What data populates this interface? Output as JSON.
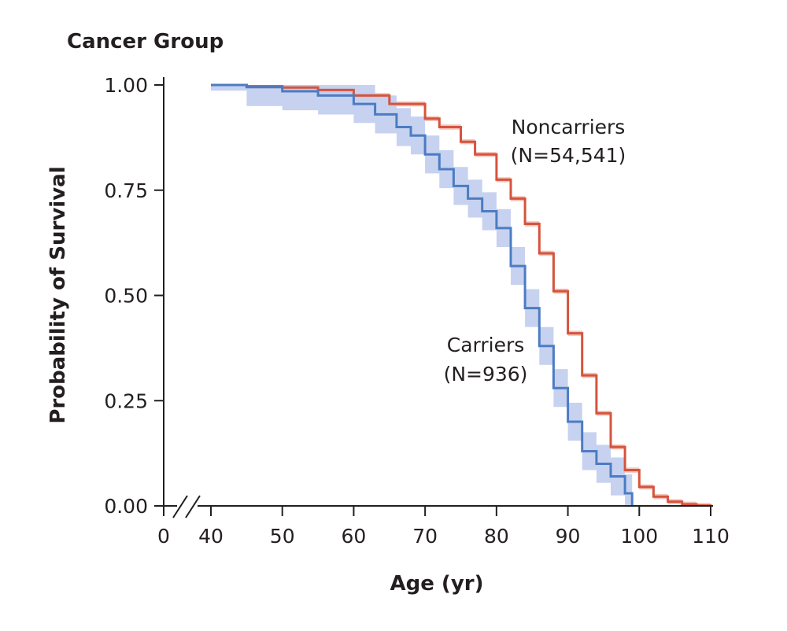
{
  "chart_data": {
    "type": "line",
    "subtype": "kaplan-meier step curves with confidence bands",
    "title": "Cancer Group",
    "xlabel": "Age (yr)",
    "ylabel": "Probability of Survival",
    "xlim": [
      40,
      110
    ],
    "ylim": [
      0.0,
      1.0
    ],
    "x_ticks": [
      40,
      50,
      60,
      70,
      80,
      90,
      100,
      110
    ],
    "x_tick_labels": [
      "0",
      "40",
      "50",
      "60",
      "70",
      "80",
      "90",
      "100",
      "110"
    ],
    "x_axis_break": "between 0 and 40",
    "y_ticks": [
      0.0,
      0.25,
      0.5,
      0.75,
      1.0
    ],
    "y_tick_labels": [
      "0.00",
      "0.25",
      "0.50",
      "0.75",
      "1.00"
    ],
    "grid": false,
    "series": [
      {
        "name": "Noncarriers",
        "label_lines": [
          "Noncarriers",
          "(N=54,541)"
        ],
        "color": "#d5543d",
        "band_color": "#f2b9ad",
        "points": [
          [
            40,
            1.0
          ],
          [
            45,
            0.997
          ],
          [
            50,
            0.994
          ],
          [
            55,
            0.988
          ],
          [
            60,
            0.975
          ],
          [
            65,
            0.955
          ],
          [
            70,
            0.92
          ],
          [
            72,
            0.9
          ],
          [
            75,
            0.865
          ],
          [
            77,
            0.835
          ],
          [
            80,
            0.775
          ],
          [
            82,
            0.73
          ],
          [
            84,
            0.67
          ],
          [
            86,
            0.6
          ],
          [
            88,
            0.51
          ],
          [
            90,
            0.41
          ],
          [
            92,
            0.31
          ],
          [
            94,
            0.22
          ],
          [
            96,
            0.14
          ],
          [
            98,
            0.085
          ],
          [
            100,
            0.045
          ],
          [
            102,
            0.022
          ],
          [
            104,
            0.01
          ],
          [
            106,
            0.004
          ],
          [
            108,
            0.001
          ],
          [
            110,
            0.0
          ]
        ],
        "ci_halfwidth": 0.006
      },
      {
        "name": "Carriers",
        "label_lines": [
          "Carriers",
          "(N=936)"
        ],
        "color": "#4c7cc3",
        "band_color": "#bccaec",
        "points": [
          [
            40,
            1.0
          ],
          [
            45,
            0.995
          ],
          [
            50,
            0.985
          ],
          [
            55,
            0.975
          ],
          [
            60,
            0.955
          ],
          [
            63,
            0.93
          ],
          [
            66,
            0.9
          ],
          [
            68,
            0.88
          ],
          [
            70,
            0.835
          ],
          [
            72,
            0.8
          ],
          [
            74,
            0.76
          ],
          [
            76,
            0.73
          ],
          [
            78,
            0.7
          ],
          [
            80,
            0.66
          ],
          [
            82,
            0.57
          ],
          [
            84,
            0.47
          ],
          [
            86,
            0.38
          ],
          [
            88,
            0.28
          ],
          [
            90,
            0.2
          ],
          [
            92,
            0.13
          ],
          [
            94,
            0.1
          ],
          [
            96,
            0.07
          ],
          [
            98,
            0.03
          ],
          [
            99,
            0.0
          ]
        ],
        "ci_halfwidth": 0.045
      }
    ]
  }
}
